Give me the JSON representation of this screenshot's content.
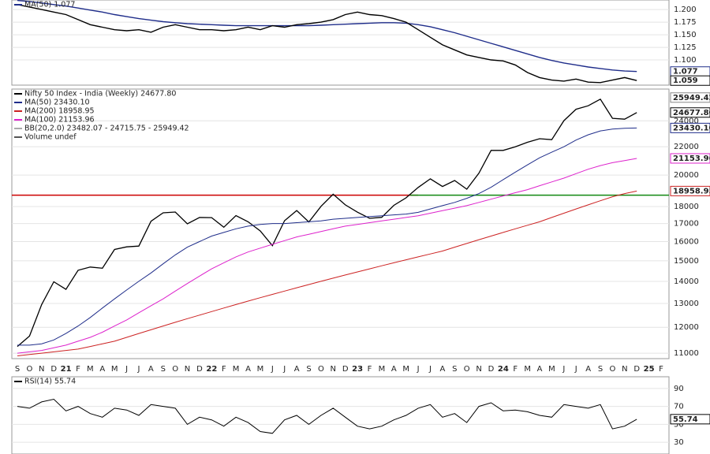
{
  "chart_data": [
    {
      "type": "line",
      "panel": "top",
      "ylim": [
        1.05,
        1.219
      ],
      "yticks": [
        {
          "value": 1.2,
          "label": "1.200"
        },
        {
          "value": 1.175,
          "label": "1.175"
        },
        {
          "value": 1.15,
          "label": "1.150"
        },
        {
          "value": 1.125,
          "label": "1.125"
        },
        {
          "value": 1.1,
          "label": "1.100"
        }
      ],
      "series": [
        {
          "name": "MA(50) 1.077",
          "color": "#1f2d8a",
          "legend": true,
          "values": [
            1.218,
            1.216,
            1.213,
            1.21,
            1.207,
            1.203,
            1.199,
            1.195,
            1.19,
            1.186,
            1.182,
            1.179,
            1.176,
            1.174,
            1.172,
            1.171,
            1.17,
            1.169,
            1.168,
            1.168,
            1.168,
            1.168,
            1.168,
            1.168,
            1.168,
            1.169,
            1.17,
            1.171,
            1.172,
            1.173,
            1.174,
            1.174,
            1.173,
            1.17,
            1.166,
            1.16,
            1.154,
            1.147,
            1.14,
            1.133,
            1.126,
            1.119,
            1.112,
            1.105,
            1.099,
            1.094,
            1.09,
            1.086,
            1.083,
            1.08,
            1.078,
            1.077,
            null,
            null
          ]
        },
        {
          "name": "",
          "color": "#000000",
          "legend": false,
          "values": [
            1.21,
            1.205,
            1.2,
            1.195,
            1.19,
            1.18,
            1.17,
            1.165,
            1.16,
            1.158,
            1.16,
            1.155,
            1.165,
            1.17,
            1.165,
            1.16,
            1.16,
            1.158,
            1.16,
            1.165,
            1.16,
            1.168,
            1.165,
            1.17,
            1.172,
            1.175,
            1.18,
            1.19,
            1.195,
            1.19,
            1.188,
            1.182,
            1.175,
            1.16,
            1.145,
            1.13,
            1.12,
            1.11,
            1.105,
            1.1,
            1.098,
            1.09,
            1.075,
            1.065,
            1.06,
            1.058,
            1.062,
            1.056,
            1.055,
            1.06,
            1.065,
            1.059,
            null,
            null
          ]
        }
      ],
      "tags": [
        {
          "value": 1.077,
          "label": "1.077",
          "color": "#1f2d8a"
        },
        {
          "value": 1.059,
          "label": "1.059",
          "color": "#000000"
        }
      ]
    },
    {
      "type": "line",
      "panel": "main",
      "log_scale": true,
      "categories": [
        "S",
        "O",
        "N",
        "D",
        "21",
        "F",
        "M",
        "A",
        "M",
        "J",
        "J",
        "A",
        "S",
        "O",
        "N",
        "D",
        "22",
        "F",
        "M",
        "A",
        "M",
        "J",
        "J",
        "A",
        "S",
        "O",
        "N",
        "D",
        "23",
        "F",
        "M",
        "A",
        "M",
        "J",
        "J",
        "A",
        "S",
        "O",
        "N",
        "D",
        "24",
        "F",
        "M",
        "A",
        "M",
        "J",
        "J",
        "A",
        "S",
        "O",
        "N",
        "D",
        "25",
        "F"
      ],
      "ylim": [
        10800,
        26700
      ],
      "yticks": [
        11000,
        12000,
        13000,
        14000,
        15000,
        16000,
        17000,
        18000,
        20000,
        22000,
        24000
      ],
      "series": [
        {
          "name": "Nifty 50 Index - India (Weekly) 24677.80",
          "color": "#000000",
          "width": 1.3,
          "values": [
            11250,
            11650,
            12950,
            13980,
            13630,
            14530,
            14690,
            14630,
            15580,
            15720,
            15760,
            17130,
            17620,
            17670,
            16980,
            17350,
            17340,
            16790,
            17460,
            17100,
            16580,
            15780,
            17160,
            17760,
            17090,
            18010,
            18760,
            18100,
            17660,
            17300,
            17360,
            18070,
            18530,
            19190,
            19750,
            19250,
            19640,
            19080,
            20130,
            21730,
            21730,
            22000,
            22330,
            22600,
            22530,
            24010,
            24950,
            25240,
            25810,
            24200,
            24130,
            24677.8,
            null,
            null
          ]
        },
        {
          "name": "MA(50) 23430.10",
          "color": "#1f2d8a",
          "width": 1,
          "values": [
            11300,
            11300,
            11350,
            11500,
            11750,
            12050,
            12400,
            12800,
            13200,
            13600,
            14000,
            14400,
            14850,
            15300,
            15700,
            16000,
            16300,
            16500,
            16700,
            16850,
            16950,
            17000,
            17000,
            17050,
            17100,
            17150,
            17250,
            17300,
            17350,
            17400,
            17450,
            17500,
            17550,
            17650,
            17850,
            18050,
            18250,
            18500,
            18800,
            19200,
            19700,
            20200,
            20700,
            21200,
            21600,
            22000,
            22500,
            22900,
            23200,
            23350,
            23400,
            23430.1,
            null,
            null
          ]
        },
        {
          "name": "MA(200) 18958.95",
          "color": "#cc2222",
          "width": 1,
          "values": [
            10900,
            10950,
            11000,
            11050,
            11100,
            11150,
            11250,
            11350,
            11450,
            11600,
            11750,
            11900,
            12050,
            12200,
            12350,
            12500,
            12650,
            12800,
            12950,
            13100,
            13250,
            13400,
            13550,
            13700,
            13850,
            14000,
            14150,
            14300,
            14450,
            14600,
            14750,
            14900,
            15050,
            15200,
            15350,
            15500,
            15700,
            15900,
            16100,
            16300,
            16500,
            16700,
            16900,
            17100,
            17350,
            17600,
            17850,
            18100,
            18350,
            18600,
            18800,
            18958.95,
            null,
            null
          ]
        },
        {
          "name": "MA(100) 21153.96",
          "color": "#dd22cc",
          "width": 1,
          "values": [
            11000,
            11050,
            11100,
            11200,
            11300,
            11450,
            11600,
            11800,
            12050,
            12300,
            12600,
            12900,
            13200,
            13550,
            13900,
            14250,
            14600,
            14900,
            15200,
            15450,
            15650,
            15850,
            16050,
            16250,
            16400,
            16550,
            16700,
            16850,
            16950,
            17050,
            17150,
            17250,
            17350,
            17450,
            17600,
            17750,
            17900,
            18050,
            18250,
            18450,
            18650,
            18850,
            19050,
            19300,
            19550,
            19800,
            20100,
            20400,
            20650,
            20850,
            21000,
            21153.96,
            null,
            null
          ]
        }
      ],
      "legend_extra": [
        {
          "name": "BB(20,2.0) 23482.07 - 24715.75 - 25949.42",
          "color": "#aaaaaa"
        },
        {
          "name": "Volume undef",
          "color": "#555555"
        }
      ],
      "hlines": [
        {
          "value": 18700,
          "color": "#cc0000",
          "x": [
            0,
            33
          ]
        },
        {
          "value": 18700,
          "color": "#118811",
          "x": [
            33,
            53
          ]
        }
      ],
      "tags": [
        {
          "value": 25949.42,
          "label": "25949.42",
          "color": "#888888"
        },
        {
          "value": 24677.8,
          "label": "24677.80",
          "color": "#000000"
        },
        {
          "value": 23430.1,
          "label": "23430.10",
          "color": "#1f2d8a"
        },
        {
          "value": 21153.96,
          "label": "21153.96",
          "color": "#dd22cc"
        },
        {
          "value": 18958.95,
          "label": "18958.95",
          "color": "#cc2222"
        }
      ]
    },
    {
      "type": "line",
      "panel": "rsi",
      "ylim": [
        17,
        103
      ],
      "yticks": [
        90,
        70,
        50,
        30
      ],
      "series": [
        {
          "name": "RSI(14) 55.74",
          "color": "#000000",
          "width": 1,
          "legend": true,
          "values": [
            70,
            68,
            75,
            78,
            65,
            70,
            62,
            58,
            68,
            66,
            60,
            72,
            70,
            68,
            50,
            58,
            55,
            48,
            58,
            52,
            42,
            40,
            55,
            60,
            50,
            60,
            68,
            58,
            48,
            45,
            48,
            55,
            60,
            68,
            72,
            58,
            62,
            52,
            70,
            74,
            65,
            66,
            64,
            60,
            58,
            72,
            70,
            68,
            72,
            45,
            48,
            55.74,
            null,
            null
          ]
        }
      ],
      "tags": [
        {
          "value": 55.74,
          "label": "55.74",
          "color": "#000000"
        }
      ]
    }
  ]
}
